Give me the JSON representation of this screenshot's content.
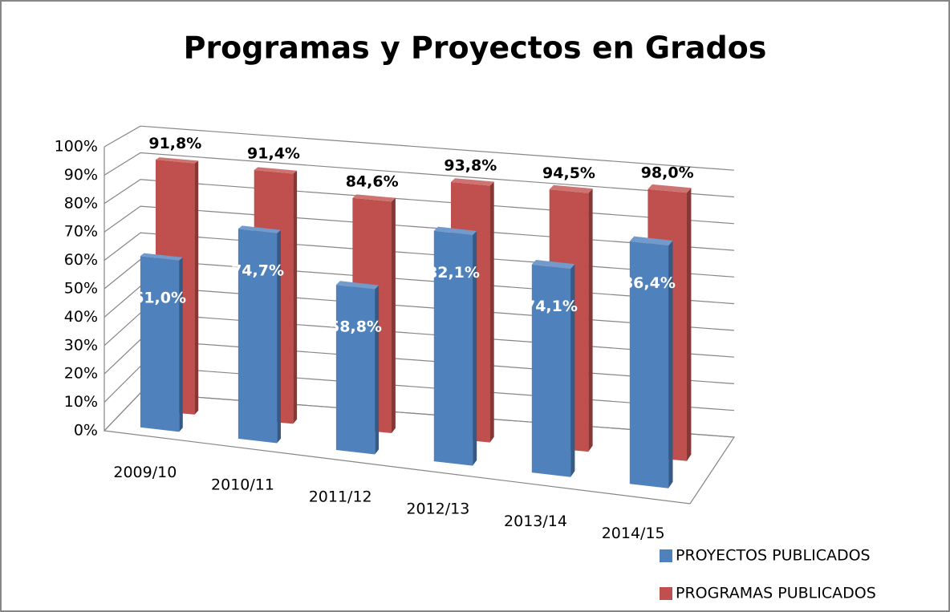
{
  "chart_data": {
    "type": "bar3d",
    "title": "Programas y Proyectos en Grados",
    "categories": [
      "2009/10",
      "2010/11",
      "2011/12",
      "2012/13",
      "2013/14",
      "2014/15"
    ],
    "series": [
      {
        "name": "PROYECTOS PUBLICADOS",
        "color": "#4f81bd",
        "values": [
          61.0,
          74.7,
          58.8,
          82.1,
          74.1,
          86.4
        ],
        "value_labels": [
          "61,0%",
          "74,7%",
          "58,8%",
          "82,1%",
          "74,1%",
          "86,4%"
        ]
      },
      {
        "name": "PROGRAMAS PUBLICADOS",
        "color": "#c0504d",
        "values": [
          91.8,
          91.4,
          84.6,
          93.8,
          94.5,
          98.0
        ],
        "value_labels": [
          "91,8%",
          "91,4%",
          "84,6%",
          "93,8%",
          "94,5%",
          "98,0%"
        ]
      }
    ],
    "ylim": [
      0,
      100
    ],
    "yticks": [
      {
        "value": 0,
        "label": "0%"
      },
      {
        "value": 10,
        "label": "10%"
      },
      {
        "value": 20,
        "label": "20%"
      },
      {
        "value": 30,
        "label": "30%"
      },
      {
        "value": 40,
        "label": "40%"
      },
      {
        "value": 50,
        "label": "50%"
      },
      {
        "value": 60,
        "label": "60%"
      },
      {
        "value": 70,
        "label": "70%"
      },
      {
        "value": 80,
        "label": "80%"
      },
      {
        "value": 90,
        "label": "90%"
      },
      {
        "value": 100,
        "label": "100%"
      }
    ],
    "grid": true,
    "legend": "bottom-right"
  }
}
